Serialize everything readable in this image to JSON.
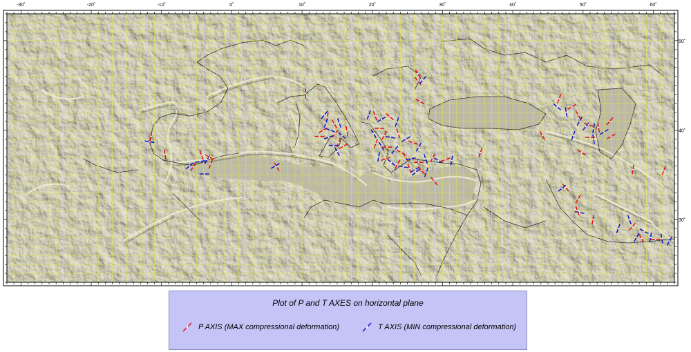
{
  "map": {
    "lon_ticks": [
      "-30˚",
      "-20˚",
      "-10˚",
      "0˚",
      "10˚",
      "20˚",
      "30˚",
      "40˚",
      "50˚",
      "60˚"
    ],
    "lon_values": [
      -30,
      -20,
      -10,
      0,
      10,
      20,
      30,
      40,
      50,
      60
    ],
    "lat_ticks": [
      "30˚",
      "40˚",
      "50˚"
    ],
    "lat_values": [
      30,
      40,
      50
    ],
    "lon_range": [
      -32,
      63
    ],
    "lat_range": [
      23,
      53
    ],
    "grid_color": "#e6e640",
    "relief_color": "#a3a38f",
    "land_color": "#b5b39e"
  },
  "legend": {
    "title": "Plot of P and T AXES on horizontal plane",
    "p_axis_label": "P AXIS (MAX compressional deformation)",
    "t_axis_label": "T AXIS (MIN compressional deformation)",
    "p_color": "#e01010",
    "t_color": "#1010c8"
  },
  "axes": [
    {
      "t": "P",
      "lon": 26.5,
      "lat": 46.3,
      "az": 150
    },
    {
      "t": "P",
      "lon": 26.5,
      "lat": 45.5,
      "az": 140
    },
    {
      "t": "T",
      "lon": 27.2,
      "lat": 45.6,
      "az": 40
    },
    {
      "t": "P",
      "lon": 26.8,
      "lat": 43.2,
      "az": 120
    },
    {
      "t": "P",
      "lon": 10.5,
      "lat": 44.1,
      "az": 0
    },
    {
      "t": "P",
      "lon": -11.5,
      "lat": 39.3,
      "az": 10
    },
    {
      "t": "T",
      "lon": -11.7,
      "lat": 38.7,
      "az": 100
    },
    {
      "t": "P",
      "lon": -9.5,
      "lat": 37.3,
      "az": 170
    },
    {
      "t": "T",
      "lon": -6.0,
      "lat": 36.0,
      "az": 50
    },
    {
      "t": "P",
      "lon": -5.5,
      "lat": 35.9,
      "az": 30
    },
    {
      "t": "T",
      "lon": -4.5,
      "lat": 36.5,
      "az": 80
    },
    {
      "t": "P",
      "lon": -4.3,
      "lat": 37.2,
      "az": 160
    },
    {
      "t": "T",
      "lon": -3.5,
      "lat": 36.7,
      "az": 30
    },
    {
      "t": "P",
      "lon": -3.2,
      "lat": 37.0,
      "az": 120
    },
    {
      "t": "T",
      "lon": -3.9,
      "lat": 35.1,
      "az": 90
    },
    {
      "t": "P",
      "lon": -3.0,
      "lat": 36.2,
      "az": 20
    },
    {
      "t": "T",
      "lon": 6.2,
      "lat": 36.0,
      "az": 60
    },
    {
      "t": "P",
      "lon": 6.4,
      "lat": 35.9,
      "az": 150
    },
    {
      "t": "T",
      "lon": 13.2,
      "lat": 41.7,
      "az": 40
    },
    {
      "t": "P",
      "lon": 13.6,
      "lat": 41.4,
      "az": 10
    },
    {
      "t": "T",
      "lon": 13.4,
      "lat": 40.8,
      "az": 20
    },
    {
      "t": "P",
      "lon": 14.6,
      "lat": 40.7,
      "az": 150
    },
    {
      "t": "T",
      "lon": 15.3,
      "lat": 40.8,
      "az": 160
    },
    {
      "t": "P",
      "lon": 13.0,
      "lat": 40.0,
      "az": 60
    },
    {
      "t": "T",
      "lon": 14.0,
      "lat": 40.0,
      "az": 110
    },
    {
      "t": "P",
      "lon": 14.7,
      "lat": 39.6,
      "az": 40
    },
    {
      "t": "T",
      "lon": 15.7,
      "lat": 39.4,
      "az": 130
    },
    {
      "t": "P",
      "lon": 12.5,
      "lat": 39.3,
      "az": 90
    },
    {
      "t": "T",
      "lon": 13.8,
      "lat": 39.2,
      "az": 70
    },
    {
      "t": "P",
      "lon": 15.2,
      "lat": 38.6,
      "az": 20
    },
    {
      "t": "T",
      "lon": 14.5,
      "lat": 38.3,
      "az": 90
    },
    {
      "t": "P",
      "lon": 15.9,
      "lat": 38.2,
      "az": 60
    },
    {
      "t": "T",
      "lon": 15.0,
      "lat": 37.6,
      "az": 150
    },
    {
      "t": "P",
      "lon": 16.4,
      "lat": 39.9,
      "az": 170
    },
    {
      "t": "T",
      "lon": 19.5,
      "lat": 41.7,
      "az": 20
    },
    {
      "t": "P",
      "lon": 20.4,
      "lat": 41.6,
      "az": 160
    },
    {
      "t": "T",
      "lon": 21.3,
      "lat": 41.2,
      "az": 60
    },
    {
      "t": "P",
      "lon": 22.5,
      "lat": 41.5,
      "az": 130
    },
    {
      "t": "T",
      "lon": 23.5,
      "lat": 40.9,
      "az": 20
    },
    {
      "t": "P",
      "lon": 21.0,
      "lat": 40.2,
      "az": 90
    },
    {
      "t": "T",
      "lon": 20.2,
      "lat": 39.6,
      "az": 150
    },
    {
      "t": "P",
      "lon": 21.7,
      "lat": 39.4,
      "az": 30
    },
    {
      "t": "T",
      "lon": 22.6,
      "lat": 39.2,
      "az": 100
    },
    {
      "t": "P",
      "lon": 23.7,
      "lat": 39.6,
      "az": 160
    },
    {
      "t": "T",
      "lon": 24.8,
      "lat": 39.0,
      "az": 60
    },
    {
      "t": "P",
      "lon": 20.5,
      "lat": 38.5,
      "az": 20
    },
    {
      "t": "T",
      "lon": 21.3,
      "lat": 38.2,
      "az": 150
    },
    {
      "t": "P",
      "lon": 22.1,
      "lat": 38.1,
      "az": 90
    },
    {
      "t": "T",
      "lon": 23.2,
      "lat": 37.8,
      "az": 40
    },
    {
      "t": "P",
      "lon": 24.1,
      "lat": 37.5,
      "az": 120
    },
    {
      "t": "T",
      "lon": 20.9,
      "lat": 37.0,
      "az": 10
    },
    {
      "t": "P",
      "lon": 21.9,
      "lat": 36.8,
      "az": 70
    },
    {
      "t": "T",
      "lon": 22.7,
      "lat": 36.4,
      "az": 130
    },
    {
      "t": "P",
      "lon": 23.6,
      "lat": 36.2,
      "az": 30
    },
    {
      "t": "T",
      "lon": 24.4,
      "lat": 35.9,
      "az": 100
    },
    {
      "t": "P",
      "lon": 25.3,
      "lat": 35.7,
      "az": 160
    },
    {
      "t": "T",
      "lon": 26.1,
      "lat": 35.6,
      "az": 60
    },
    {
      "t": "P",
      "lon": 27.0,
      "lat": 35.5,
      "az": 140
    },
    {
      "t": "T",
      "lon": 27.7,
      "lat": 35.3,
      "az": 20
    },
    {
      "t": "P",
      "lon": 26.6,
      "lat": 36.4,
      "az": 90
    },
    {
      "t": "T",
      "lon": 27.6,
      "lat": 36.8,
      "az": 160
    },
    {
      "t": "P",
      "lon": 28.6,
      "lat": 36.9,
      "az": 30
    },
    {
      "t": "T",
      "lon": 29.4,
      "lat": 36.6,
      "az": 120
    },
    {
      "t": "P",
      "lon": 30.4,
      "lat": 36.7,
      "az": 70
    },
    {
      "t": "T",
      "lon": 31.3,
      "lat": 36.6,
      "az": 10
    },
    {
      "t": "P",
      "lon": 25.8,
      "lat": 38.6,
      "az": 110
    },
    {
      "t": "T",
      "lon": 26.6,
      "lat": 38.1,
      "az": 30
    },
    {
      "t": "P",
      "lon": 24.7,
      "lat": 37.0,
      "az": 150
    },
    {
      "t": "T",
      "lon": 25.5,
      "lat": 36.8,
      "az": 80
    },
    {
      "t": "P",
      "lon": 28.8,
      "lat": 34.3,
      "az": 140
    },
    {
      "t": "T",
      "lon": 26.2,
      "lat": 35.3,
      "az": 50
    },
    {
      "t": "P",
      "lon": 35.4,
      "lat": 37.5,
      "az": 20
    },
    {
      "t": "T",
      "lon": 46.3,
      "lat": 42.6,
      "az": 130
    },
    {
      "t": "P",
      "lon": 46.6,
      "lat": 43.5,
      "az": 20
    },
    {
      "t": "T",
      "lon": 47.6,
      "lat": 42.0,
      "az": 170
    },
    {
      "t": "P",
      "lon": 48.4,
      "lat": 42.6,
      "az": 60
    },
    {
      "t": "T",
      "lon": 49.5,
      "lat": 41.0,
      "az": 30
    },
    {
      "t": "P",
      "lon": 49.3,
      "lat": 41.7,
      "az": 150
    },
    {
      "t": "T",
      "lon": 50.4,
      "lat": 40.4,
      "az": 40
    },
    {
      "t": "P",
      "lon": 50.8,
      "lat": 40.6,
      "az": 110
    },
    {
      "t": "T",
      "lon": 51.5,
      "lat": 40.2,
      "az": 10
    },
    {
      "t": "P",
      "lon": 52.2,
      "lat": 40.3,
      "az": 170
    },
    {
      "t": "T",
      "lon": 53.0,
      "lat": 39.8,
      "az": 60
    },
    {
      "t": "P",
      "lon": 53.8,
      "lat": 41.0,
      "az": 40
    },
    {
      "t": "P",
      "lon": 44.2,
      "lat": 39.4,
      "az": 150
    },
    {
      "t": "T",
      "lon": 48.6,
      "lat": 39.4,
      "az": 20
    },
    {
      "t": "P",
      "lon": 51.0,
      "lat": 39.2,
      "az": 90
    },
    {
      "t": "T",
      "lon": 51.5,
      "lat": 39.0,
      "az": 170
    },
    {
      "t": "P",
      "lon": 54.0,
      "lat": 39.3,
      "az": 60
    },
    {
      "t": "P",
      "lon": 49.8,
      "lat": 37.5,
      "az": 120
    },
    {
      "t": "P",
      "lon": 57.1,
      "lat": 35.6,
      "az": 10
    },
    {
      "t": "P",
      "lon": 61.5,
      "lat": 35.5,
      "az": 20
    },
    {
      "t": "P",
      "lon": 47.5,
      "lat": 33.6,
      "az": 140
    },
    {
      "t": "T",
      "lon": 47.0,
      "lat": 33.5,
      "az": 50
    },
    {
      "t": "P",
      "lon": 49.3,
      "lat": 32.3,
      "az": 30
    },
    {
      "t": "T",
      "lon": 49.5,
      "lat": 30.8,
      "az": 100
    },
    {
      "t": "P",
      "lon": 49.2,
      "lat": 31.0,
      "az": 160
    },
    {
      "t": "P",
      "lon": 51.4,
      "lat": 30.0,
      "az": 10
    },
    {
      "t": "T",
      "lon": 55.0,
      "lat": 29.0,
      "az": 20
    },
    {
      "t": "T",
      "lon": 56.6,
      "lat": 30.0,
      "az": 160
    },
    {
      "t": "P",
      "lon": 57.0,
      "lat": 29.2,
      "az": 40
    },
    {
      "t": "T",
      "lon": 57.6,
      "lat": 28.0,
      "az": 30
    },
    {
      "t": "P",
      "lon": 58.3,
      "lat": 27.9,
      "az": 150
    },
    {
      "t": "T",
      "lon": 58.7,
      "lat": 28.7,
      "az": 120
    },
    {
      "t": "T",
      "lon": 59.6,
      "lat": 28.0,
      "az": 10
    },
    {
      "t": "P",
      "lon": 60.3,
      "lat": 27.8,
      "az": 90
    },
    {
      "t": "T",
      "lon": 61.2,
      "lat": 27.9,
      "az": 170
    },
    {
      "t": "T",
      "lon": 62.3,
      "lat": 27.6,
      "az": 30
    }
  ]
}
